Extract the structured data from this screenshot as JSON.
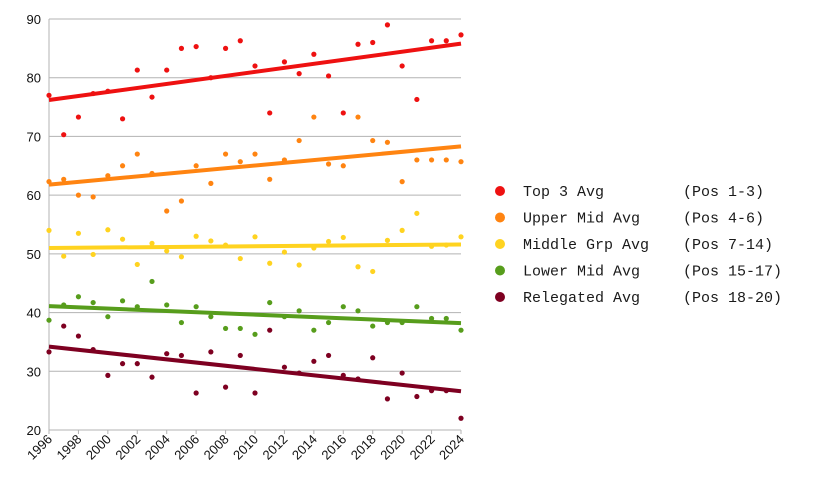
{
  "chart_data": {
    "type": "scatter",
    "title": "",
    "xlabel": "",
    "ylabel": "",
    "xlim": [
      1996,
      2024
    ],
    "ylim": [
      20,
      90
    ],
    "x_ticks": [
      "1996",
      "1998",
      "2000",
      "2002",
      "2004",
      "2006",
      "2008",
      "2010",
      "2012",
      "2014",
      "2016",
      "2018",
      "2020",
      "2022",
      "2024"
    ],
    "y_ticks": [
      "20",
      "30",
      "40",
      "50",
      "60",
      "70",
      "80",
      "90"
    ],
    "grid": "horizontal",
    "legend_position": "right",
    "x": [
      1996,
      1997,
      1998,
      1999,
      2000,
      2001,
      2002,
      2003,
      2004,
      2005,
      2006,
      2007,
      2008,
      2009,
      2010,
      2011,
      2012,
      2013,
      2014,
      2015,
      2016,
      2017,
      2018,
      2019,
      2020,
      2021,
      2022,
      2023,
      2024
    ],
    "series": [
      {
        "name": "Top 3 Avg",
        "range_label": "(Pos 1-3)",
        "color": "#ee1111",
        "values": [
          77,
          70.3,
          73.3,
          77.3,
          77.7,
          73,
          81.3,
          76.7,
          81.3,
          85,
          85.3,
          80,
          85,
          86.3,
          82,
          74,
          82.7,
          80.7,
          84,
          80.3,
          74,
          85.7,
          86,
          89,
          82,
          76.3,
          86.3,
          86.3,
          87.3
        ],
        "trend": [
          76.2,
          85.8
        ]
      },
      {
        "name": "Upper Mid Avg",
        "range_label": "(Pos 4-6)",
        "color": "#ff8411",
        "values": [
          62.3,
          62.7,
          60,
          59.7,
          63.3,
          65,
          67,
          63.7,
          57.3,
          59,
          65,
          62,
          67,
          65.7,
          67,
          62.7,
          66,
          69.3,
          73.3,
          65.3,
          65,
          73.3,
          69.3,
          69,
          62.3,
          66,
          66,
          66,
          65.7
        ],
        "trend": [
          61.8,
          68.3
        ]
      },
      {
        "name": "Middle Grp Avg",
        "range_label": "(Pos 7-14)",
        "color": "#ffd320",
        "values": [
          54,
          49.6,
          53.5,
          49.9,
          54.1,
          52.5,
          48.2,
          51.8,
          50.5,
          49.5,
          53,
          52.2,
          51.5,
          49.2,
          52.9,
          48.4,
          50.3,
          48.1,
          51,
          52.1,
          52.8,
          47.8,
          47,
          52.3,
          54,
          56.9,
          51.3,
          51.5,
          52.9
        ],
        "trend": [
          51.0,
          51.6
        ]
      },
      {
        "name": "Lower Mid Avg",
        "range_label": "(Pos 15-17)",
        "color": "#579d1c",
        "values": [
          38.7,
          41.3,
          42.7,
          41.7,
          39.3,
          42,
          41,
          45.3,
          41.3,
          38.3,
          41,
          39.3,
          37.3,
          37.3,
          36.3,
          41.7,
          39.3,
          40.3,
          37,
          38.3,
          41,
          40.3,
          37.7,
          38.3,
          38.3,
          41,
          39,
          39,
          37
        ],
        "trend": [
          41.1,
          38.2
        ]
      },
      {
        "name": "Relegated Avg",
        "range_label": "(Pos 18-20)",
        "color": "#7e0021",
        "values": [
          33.3,
          37.7,
          36,
          33.7,
          29.3,
          31.3,
          31.3,
          29,
          33,
          32.7,
          26.3,
          33.3,
          27.3,
          32.7,
          26.3,
          37,
          30.7,
          29.7,
          31.7,
          32.7,
          29.3,
          28.7,
          32.3,
          25.3,
          29.7,
          25.7,
          26.7,
          26.7,
          22
        ],
        "trend": [
          34.2,
          26.6
        ]
      }
    ]
  }
}
